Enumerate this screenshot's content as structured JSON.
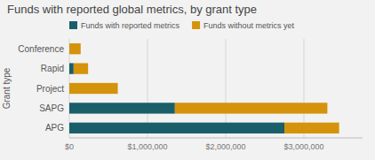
{
  "chart_data": {
    "type": "bar",
    "orientation": "horizontal",
    "stacked": true,
    "title": "Funds with reported global metrics, by grant type",
    "ylabel": "Grant type",
    "categories": [
      "Conference",
      "Rapid",
      "Project",
      "SAPG",
      "APG"
    ],
    "series": [
      {
        "name": "Funds with reported metrics",
        "color": "#1a5e6a",
        "values": [
          0,
          55000,
          0,
          1350000,
          2750000
        ]
      },
      {
        "name": "Funds without metrics yet",
        "color": "#d4930a",
        "values": [
          145000,
          185000,
          620000,
          1950000,
          700000
        ]
      }
    ],
    "xlim": [
      0,
      3750000
    ],
    "xticks": [
      {
        "value": 0,
        "label": "$0"
      },
      {
        "value": 1000000,
        "label": "$1,000,000"
      },
      {
        "value": 2000000,
        "label": "$2,000,000"
      },
      {
        "value": 3000000,
        "label": "$3,000,000"
      }
    ],
    "grid": true,
    "legend": "top"
  }
}
